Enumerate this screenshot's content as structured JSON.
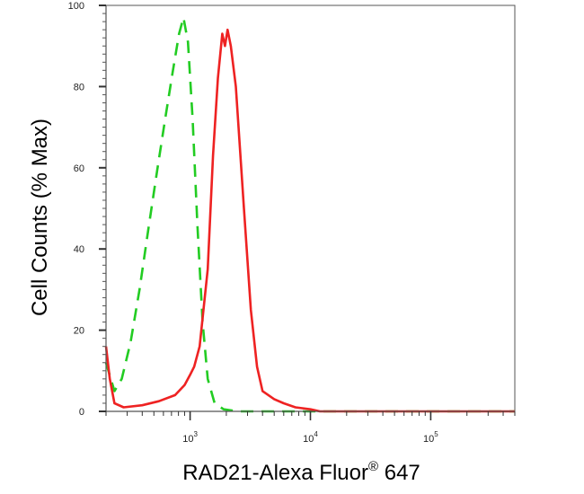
{
  "chart_data": {
    "type": "line",
    "title": "",
    "xlabel": "RAD21-Alexa Fluor",
    "xlabel_superscript": "®",
    "xlabel_suffix": " 647",
    "ylabel": "Cell Counts (% Max)",
    "x_scale": "log",
    "xlim": [
      200,
      500000
    ],
    "ylim": [
      0,
      100
    ],
    "y_ticks": [
      "0",
      "20",
      "40",
      "60",
      "80",
      "100"
    ],
    "x_ticks": [
      {
        "value": 1000,
        "base": "10",
        "exp": "3"
      },
      {
        "value": 10000,
        "base": "10",
        "exp": "4"
      },
      {
        "value": 100000,
        "base": "10",
        "exp": "5"
      }
    ],
    "grid": false,
    "legend": "none",
    "series": [
      {
        "color": "#22cc22",
        "style": "dashed",
        "points": [
          [
            200,
            12
          ],
          [
            235,
            5
          ],
          [
            270,
            8
          ],
          [
            320,
            17
          ],
          [
            380,
            30
          ],
          [
            450,
            45
          ],
          [
            530,
            59
          ],
          [
            620,
            72
          ],
          [
            720,
            84
          ],
          [
            810,
            93
          ],
          [
            880,
            97
          ],
          [
            960,
            91
          ],
          [
            1050,
            72
          ],
          [
            1150,
            46
          ],
          [
            1270,
            22
          ],
          [
            1400,
            8
          ],
          [
            1600,
            2
          ],
          [
            1900,
            0.5
          ],
          [
            2500,
            0
          ],
          [
            500000,
            0
          ]
        ]
      },
      {
        "color": "#ee2222",
        "style": "solid",
        "points": [
          [
            200,
            16
          ],
          [
            215,
            8
          ],
          [
            235,
            2
          ],
          [
            280,
            1
          ],
          [
            400,
            1.5
          ],
          [
            550,
            2.5
          ],
          [
            750,
            4
          ],
          [
            900,
            6.5
          ],
          [
            1000,
            9
          ],
          [
            1080,
            11
          ],
          [
            1200,
            16
          ],
          [
            1400,
            35
          ],
          [
            1550,
            63
          ],
          [
            1700,
            82
          ],
          [
            1850,
            93
          ],
          [
            1950,
            90
          ],
          [
            2050,
            94
          ],
          [
            2180,
            90
          ],
          [
            2400,
            80
          ],
          [
            2800,
            50
          ],
          [
            3200,
            25
          ],
          [
            3600,
            11
          ],
          [
            4000,
            5
          ],
          [
            5000,
            3
          ],
          [
            6000,
            2
          ],
          [
            7500,
            1
          ],
          [
            10000,
            0.5
          ],
          [
            12000,
            0
          ],
          [
            500000,
            0
          ]
        ]
      }
    ]
  }
}
